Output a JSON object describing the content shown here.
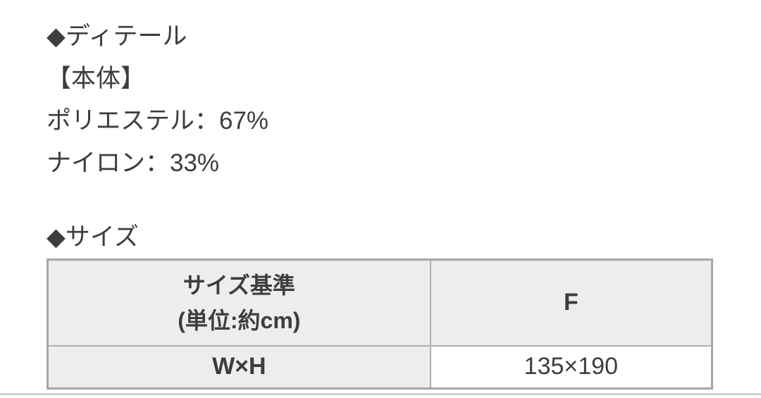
{
  "ui": {
    "diamond_bullet": "◆"
  },
  "detail_section": {
    "heading": "ディテール",
    "subheading": "【本体】",
    "materials": [
      "ポリエステル：67%",
      "ナイロン：33%"
    ]
  },
  "size_section": {
    "heading": "サイズ",
    "table": {
      "header": {
        "standard_line1": "サイズ基準",
        "standard_line2": "(単位:約cm)",
        "size_col": "F"
      },
      "rows": [
        {
          "label": "W×H",
          "value": "135×190"
        }
      ]
    }
  },
  "colors": {
    "text": "#3d3d3d",
    "table_border": "#b0b0b0",
    "table_outer_border": "#a6a6a6",
    "header_bg": "#ededed",
    "cell_bg": "#ffffff",
    "divider": "#cbcfd1",
    "page_bg": "#ffffff"
  }
}
